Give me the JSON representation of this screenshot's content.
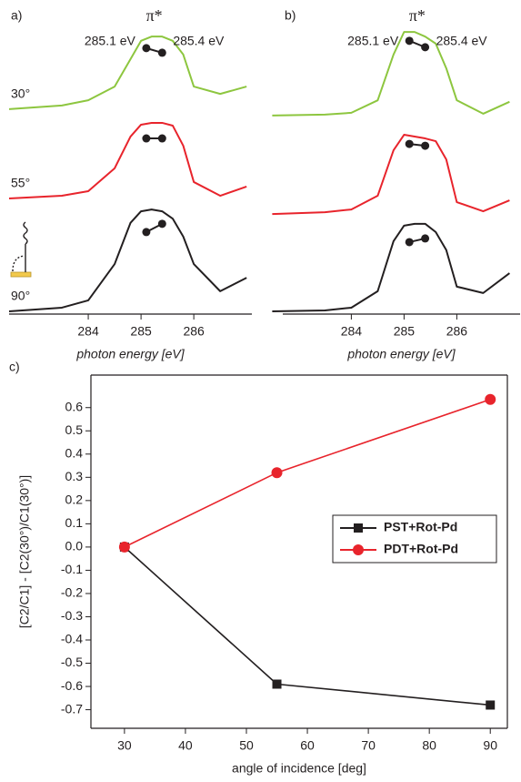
{
  "chart_data": [
    {
      "type": "line",
      "panel": "a)",
      "xlabel": "photon energy [eV]",
      "xlim": [
        282.5,
        287.1
      ],
      "xticks": [
        284,
        285,
        286
      ],
      "ylim": [
        0,
        10
      ],
      "x": [
        282.5,
        283.5,
        284.0,
        284.5,
        284.8,
        285.0,
        285.2,
        285.4,
        285.6,
        285.8,
        286.0,
        286.5,
        287.0
      ],
      "series": [
        {
          "name": "30°",
          "color": "#8dc63f",
          "values": [
            6.72,
            6.84,
            7.01,
            7.46,
            8.36,
            8.96,
            9.1,
            9.1,
            8.96,
            8.51,
            7.46,
            7.22,
            7.46
          ],
          "peak_values": [
            8.72,
            8.57
          ]
        },
        {
          "name": "55°",
          "color": "#e8242c",
          "values": [
            3.79,
            3.88,
            4.03,
            4.78,
            5.82,
            6.21,
            6.27,
            6.27,
            6.18,
            5.52,
            4.33,
            3.88,
            4.18
          ],
          "peak_values": [
            5.76,
            5.76
          ]
        },
        {
          "name": "90°",
          "color": "#231f20",
          "values": [
            0.09,
            0.21,
            0.45,
            1.64,
            2.99,
            3.37,
            3.43,
            3.37,
            3.13,
            2.54,
            1.64,
            0.75,
            1.19
          ],
          "peak_values": [
            2.69,
            2.96
          ]
        }
      ],
      "peak_x": [
        285.1,
        285.4
      ],
      "peak_labels": [
        "285.1 eV",
        "285.4 eV"
      ],
      "peak_title": "π*"
    },
    {
      "type": "line",
      "panel": "b)",
      "xlabel": "photon energy [eV]",
      "xlim": [
        282.7,
        287.2
      ],
      "xticks": [
        284,
        285,
        286
      ],
      "ylim": [
        0,
        10
      ],
      "x": [
        282.5,
        283.5,
        284.0,
        284.5,
        284.8,
        285.0,
        285.2,
        285.4,
        285.6,
        285.8,
        286.0,
        286.5,
        287.0
      ],
      "series": [
        {
          "color": "#8dc63f",
          "values": [
            6.51,
            6.54,
            6.6,
            7.01,
            8.51,
            9.25,
            9.25,
            9.1,
            8.87,
            8.06,
            7.01,
            6.57,
            6.96
          ],
          "peak_values": [
            8.96,
            8.75
          ]
        },
        {
          "color": "#e8242c",
          "values": [
            3.28,
            3.34,
            3.43,
            3.88,
            5.37,
            5.88,
            5.82,
            5.76,
            5.67,
            5.07,
            3.67,
            3.37,
            3.73
          ],
          "peak_values": [
            5.58,
            5.52
          ]
        },
        {
          "color": "#231f20",
          "values": [
            0.09,
            0.12,
            0.21,
            0.75,
            2.39,
            2.9,
            2.96,
            2.96,
            2.69,
            2.1,
            0.9,
            0.69,
            1.34
          ],
          "peak_values": [
            2.36,
            2.48
          ]
        }
      ],
      "peak_x": [
        285.1,
        285.4
      ],
      "peak_labels": [
        "285.1 eV",
        "285.4 eV"
      ],
      "peak_title": "π*"
    },
    {
      "type": "line",
      "panel": "c)",
      "xlabel": "angle of incidence [deg]",
      "ylabel": "[C2/C1] - [C2(30°)/C1(30°)]",
      "xlim": [
        24.5,
        92.8
      ],
      "xticks": [
        30,
        40,
        50,
        60,
        70,
        80,
        90
      ],
      "ylim": [
        -0.78,
        0.74
      ],
      "yticks": [
        -0.7,
        -0.6,
        -0.5,
        -0.4,
        -0.3,
        -0.2,
        -0.1,
        {
          "value": 0,
          "label": "0.0"
        },
        0.1,
        0.2,
        0.3,
        0.4,
        0.5,
        0.6
      ],
      "x": [
        30,
        55,
        90
      ],
      "series": [
        {
          "name": "PST+Rot-Pd",
          "color": "#231f20",
          "marker": "square",
          "values": [
            0,
            -0.59,
            -0.68
          ]
        },
        {
          "name": "PDT+Rot-Pd",
          "color": "#e8242c",
          "marker": "circle",
          "values": [
            0,
            0.32,
            0.635
          ]
        }
      ],
      "legend": "right"
    }
  ]
}
